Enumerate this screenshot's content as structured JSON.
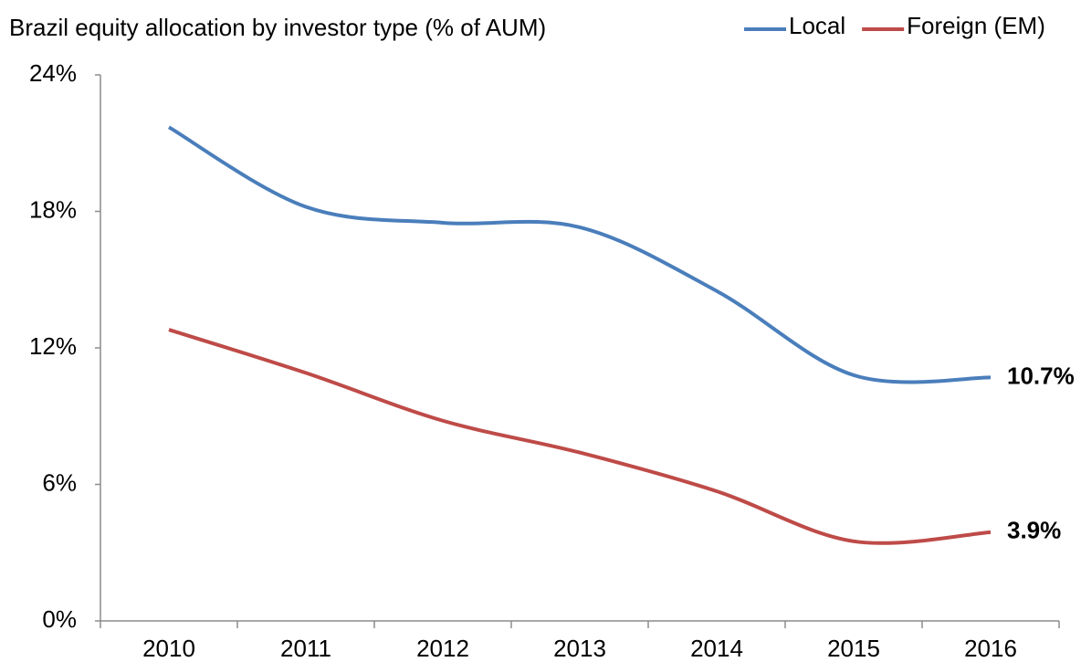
{
  "chart_data": {
    "type": "line",
    "title": "Brazil equity allocation by investor type (% of AUM)",
    "categories": [
      "2010",
      "2011",
      "2012",
      "2013",
      "2014",
      "2015",
      "2016"
    ],
    "series": [
      {
        "name": "Local",
        "color": "#4a7ebb",
        "values": [
          21.7,
          18.2,
          17.5,
          17.3,
          14.5,
          10.8,
          10.7
        ],
        "value_labels": [
          null,
          null,
          null,
          null,
          null,
          null,
          "10.7%"
        ]
      },
      {
        "name": "Foreign (EM)",
        "color": "#be4b48",
        "values": [
          12.8,
          10.9,
          8.8,
          7.4,
          5.7,
          3.5,
          3.9
        ],
        "value_labels": [
          null,
          null,
          null,
          null,
          null,
          null,
          "3.9%"
        ]
      }
    ],
    "ylim": [
      0,
      24
    ],
    "yticks": [
      {
        "value": 0,
        "label": "0%"
      },
      {
        "value": 6,
        "label": "6%"
      },
      {
        "value": 12,
        "label": "12%"
      },
      {
        "value": 18,
        "label": "18%"
      },
      {
        "value": 24,
        "label": "24%"
      }
    ],
    "legend": "top-right",
    "grid": false
  }
}
